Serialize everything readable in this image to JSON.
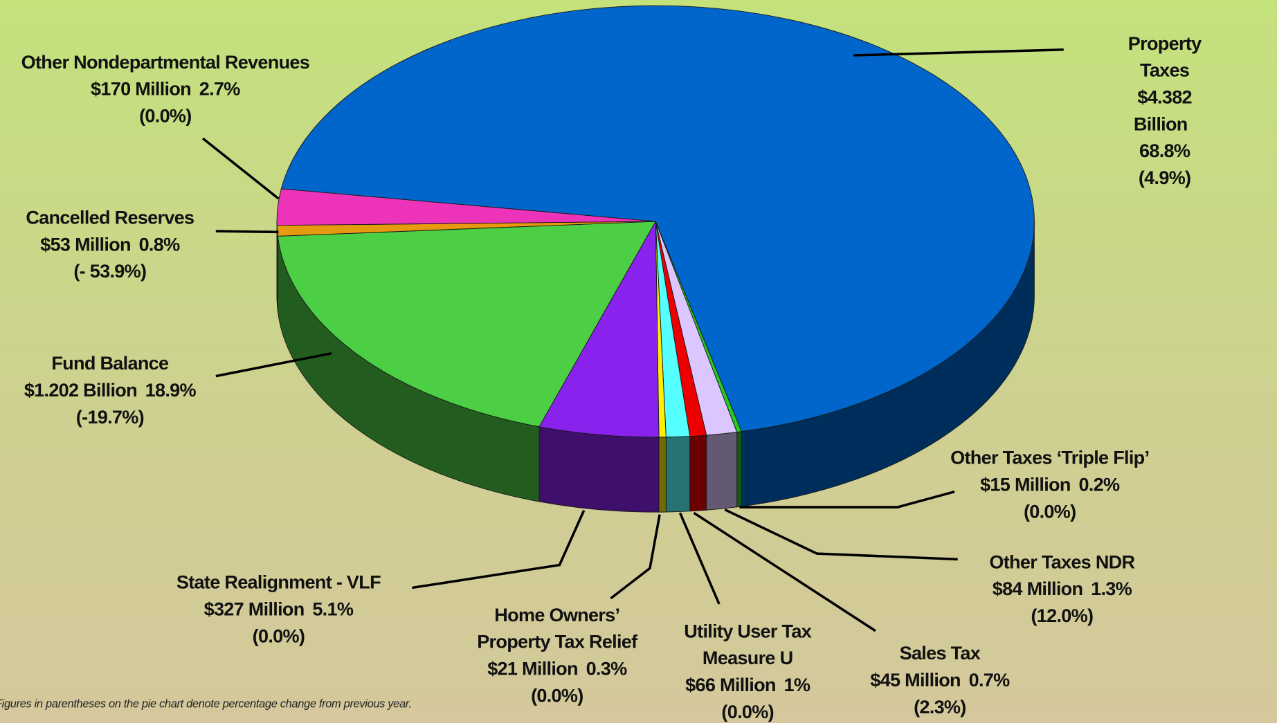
{
  "chart_data": {
    "type": "pie",
    "footnote": "Figures in parentheses on the pie chart denote percentage change from previous year.",
    "categories": [
      "Property Taxes",
      "Other Taxes ‘Triple Flip’",
      "Other Taxes NDR",
      "Sales Tax",
      "Utility User Tax\nMeasure U",
      "Home Owners’\nProperty Tax Relief",
      "State Realignment - VLF",
      "Fund Balance",
      "Cancelled Reserves",
      "Other Nondepartmental Revenues"
    ],
    "values": [
      68.8,
      0.2,
      1.3,
      0.7,
      1,
      0.3,
      5.1,
      18.9,
      0.8,
      2.7
    ],
    "value_labels": [
      "68.8%",
      "0.2%",
      "1.3%",
      "0.7%",
      "1%",
      "0.3%",
      "5.1%",
      "18.9%",
      "0.8%",
      "2.7%"
    ],
    "amounts": [
      "$4.382 Billion",
      "$15 Million",
      "$84 Million",
      "$45 Million",
      "$66 Million",
      "$21 Million",
      "$327 Million",
      "$1.202 Billion",
      "$53 Million",
      "$170 Million"
    ],
    "changes": [
      "(4.9%)",
      "(0.0%)",
      "(12.0%)",
      "(2.3%)",
      "(0.0%)",
      "(0.0%)",
      "(0.0%)",
      "(-19.7%)",
      "(- 53.9%)",
      "(0.0%)"
    ],
    "colors": [
      "#0066cc",
      "#22cc22",
      "#dcc6ff",
      "#ee0000",
      "#55ffff",
      "#ffee00",
      "#8a22ee",
      "#4ccf44",
      "#e69a10",
      "#ee33bb"
    ]
  }
}
